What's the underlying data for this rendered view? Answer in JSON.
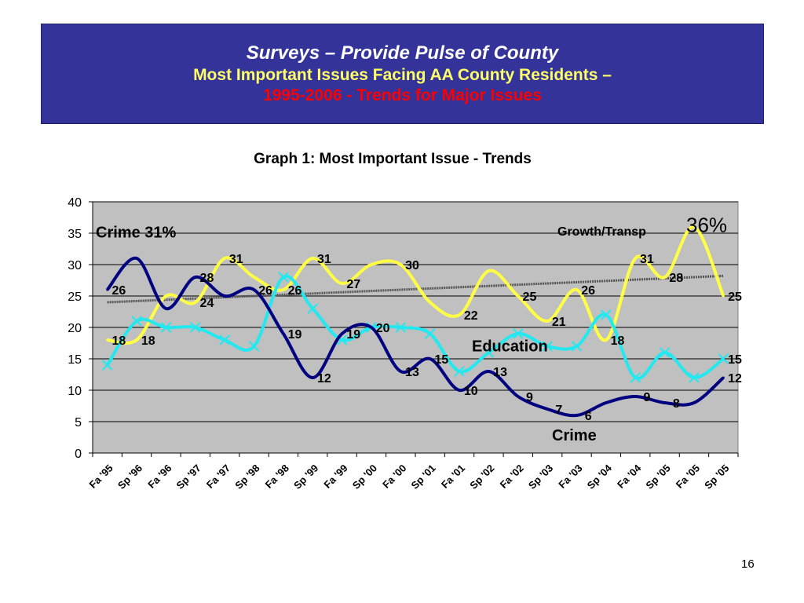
{
  "header": {
    "line1": "Surveys – Provide Pulse of County",
    "line2": "Most Important Issues Facing AA County Residents –",
    "line3": "1995-2006 - Trends for Major Issues"
  },
  "page_number": "16",
  "colors": {
    "banner_bg": "#333399",
    "plot_bg": "#c0c0c0",
    "crime": "#000080",
    "growth": "#ffff44",
    "education": "#22e8f0",
    "trendline": "#555555"
  },
  "chart_data": {
    "type": "line",
    "title": "Graph 1: Most Important Issue - Trends",
    "x": [
      "Fa '95",
      "Sp '96",
      "Fa '96",
      "Sp '97",
      "Fa '97",
      "Sp '98",
      "Fa '98",
      "Sp '99",
      "Fa '99",
      "Sp '00",
      "Fa '00",
      "Sp '01",
      "Fa '01",
      "Sp '02",
      "Fa '02",
      "Sp '03",
      "Fa '03",
      "Sp '04",
      "Fa '04",
      "Sp '05",
      "Fa '05",
      "Sp '05"
    ],
    "ylim": [
      0,
      40
    ],
    "yticks": [
      0,
      5,
      10,
      15,
      20,
      25,
      30,
      35,
      40
    ],
    "grid": true,
    "series": [
      {
        "key": "crime",
        "values": [
          26,
          31,
          23,
          28,
          25,
          26,
          19,
          12,
          19,
          20,
          13,
          15,
          10,
          13,
          9,
          7,
          6,
          8,
          9,
          8,
          8,
          12
        ]
      },
      {
        "key": "growth",
        "values": [
          18,
          18,
          25,
          24,
          31,
          28,
          26,
          31,
          27,
          30,
          30,
          24,
          22,
          29,
          25,
          21,
          26,
          18,
          31,
          28,
          36,
          25
        ]
      },
      {
        "key": "education",
        "values": [
          14,
          21,
          20,
          20,
          18,
          17,
          28,
          23,
          18,
          20,
          20,
          19,
          13,
          16,
          19,
          17,
          17,
          22,
          12,
          16,
          12,
          15
        ]
      }
    ],
    "trendline": {
      "series": "growth",
      "from": 24,
      "to": 28.2
    },
    "annotations": {
      "crime_start": "Crime 31%",
      "growth_label": "Growth/Transp",
      "growth_peak": "36%",
      "education_label": "Education",
      "crime_label": "Crime"
    },
    "data_labels": [
      {
        "text": "26",
        "x": 1,
        "y": 26
      },
      {
        "text": "18",
        "x": 1,
        "y": 18
      },
      {
        "text": "18",
        "x": 2,
        "y": 18
      },
      {
        "text": "28",
        "x": 4,
        "y": 28
      },
      {
        "text": "24",
        "x": 4,
        "y": 24
      },
      {
        "text": "31",
        "x": 5,
        "y": 31
      },
      {
        "text": "26",
        "x": 6,
        "y": 26
      },
      {
        "text": "26",
        "x": 7,
        "y": 26
      },
      {
        "text": "31",
        "x": 8,
        "y": 31
      },
      {
        "text": "19",
        "x": 7,
        "y": 19
      },
      {
        "text": "12",
        "x": 8,
        "y": 12
      },
      {
        "text": "27",
        "x": 9,
        "y": 27
      },
      {
        "text": "19",
        "x": 9,
        "y": 19
      },
      {
        "text": "20",
        "x": 10,
        "y": 20
      },
      {
        "text": "30",
        "x": 11,
        "y": 30
      },
      {
        "text": "13",
        "x": 11,
        "y": 13
      },
      {
        "text": "15",
        "x": 12,
        "y": 15
      },
      {
        "text": "22",
        "x": 13,
        "y": 22
      },
      {
        "text": "10",
        "x": 13,
        "y": 10
      },
      {
        "text": "13",
        "x": 14,
        "y": 13
      },
      {
        "text": "25",
        "x": 15,
        "y": 25
      },
      {
        "text": "9",
        "x": 15,
        "y": 9
      },
      {
        "text": "21",
        "x": 16,
        "y": 21
      },
      {
        "text": "7",
        "x": 16,
        "y": 7
      },
      {
        "text": "6",
        "x": 17,
        "y": 6
      },
      {
        "text": "26",
        "x": 17,
        "y": 26
      },
      {
        "text": "18",
        "x": 18,
        "y": 18
      },
      {
        "text": "31",
        "x": 19,
        "y": 31
      },
      {
        "text": "9",
        "x": 19,
        "y": 9
      },
      {
        "text": "28",
        "x": 20,
        "y": 28
      },
      {
        "text": "8",
        "x": 20,
        "y": 8
      },
      {
        "text": "25",
        "x": 22,
        "y": 25
      },
      {
        "text": "15",
        "x": 22,
        "y": 15
      },
      {
        "text": "12",
        "x": 22,
        "y": 12
      }
    ]
  }
}
